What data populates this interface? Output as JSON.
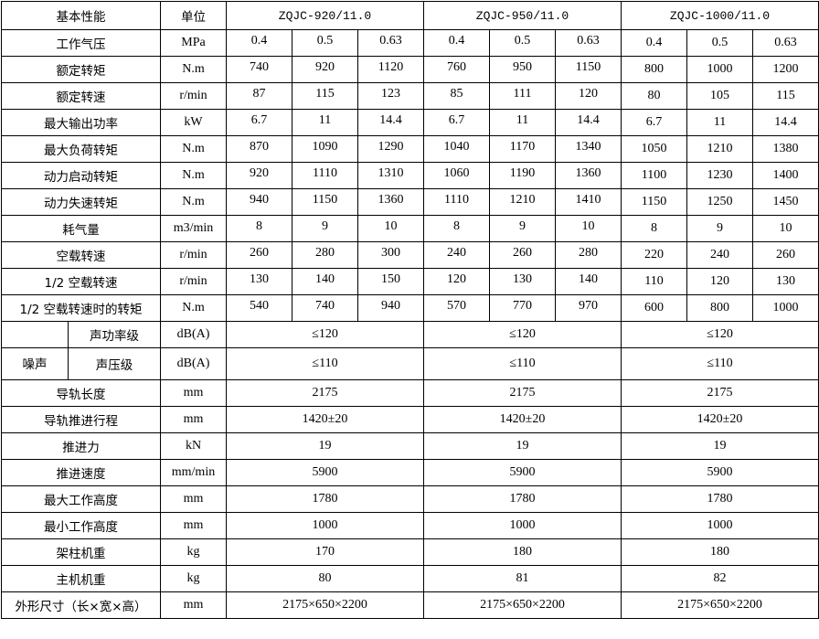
{
  "header": {
    "property": "基本性能",
    "unit": "单位",
    "models": [
      "ZQJC-920/11.0",
      "ZQJC-950/11.0",
      "ZQJC-1000/11.0"
    ]
  },
  "rows_multi": [
    {
      "label": "工作气压",
      "unit": "MPa",
      "values": [
        "0.4",
        "0.5",
        "0.63",
        "0.4",
        "0.5",
        "0.63",
        "0.4",
        "0.5",
        "0.63"
      ]
    },
    {
      "label": "额定转矩",
      "unit": "N.m",
      "values": [
        "740",
        "920",
        "1120",
        "760",
        "950",
        "1150",
        "800",
        "1000",
        "1200"
      ]
    },
    {
      "label": "额定转速",
      "unit": "r/min",
      "values": [
        "87",
        "115",
        "123",
        "85",
        "111",
        "120",
        "80",
        "105",
        "115"
      ]
    },
    {
      "label": "最大输出功率",
      "unit": "kW",
      "values": [
        "6.7",
        "11",
        "14.4",
        "6.7",
        "11",
        "14.4",
        "6.7",
        "11",
        "14.4"
      ]
    },
    {
      "label": "最大负荷转矩",
      "unit": "N.m",
      "values": [
        "870",
        "1090",
        "1290",
        "1040",
        "1170",
        "1340",
        "1050",
        "1210",
        "1380"
      ]
    },
    {
      "label": "动力启动转矩",
      "unit": "N.m",
      "values": [
        "920",
        "1110",
        "1310",
        "1060",
        "1190",
        "1360",
        "1100",
        "1230",
        "1400"
      ]
    },
    {
      "label": "动力失速转矩",
      "unit": "N.m",
      "values": [
        "940",
        "1150",
        "1360",
        "1110",
        "1210",
        "1410",
        "1150",
        "1250",
        "1450"
      ]
    },
    {
      "label": "耗气量",
      "unit": "m3/min",
      "values": [
        "8",
        "9",
        "10",
        "8",
        "9",
        "10",
        "8",
        "9",
        "10"
      ]
    },
    {
      "label": "空载转速",
      "unit": "r/min",
      "values": [
        "260",
        "280",
        "300",
        "240",
        "260",
        "280",
        "220",
        "240",
        "260"
      ]
    },
    {
      "label": "1/2 空载转速",
      "unit": "r/min",
      "values": [
        "130",
        "140",
        "150",
        "120",
        "130",
        "140",
        "110",
        "120",
        "130"
      ]
    },
    {
      "label": "1/2 空载转速时的转矩",
      "unit": "N.m",
      "values": [
        "540",
        "740",
        "940",
        "570",
        "770",
        "970",
        "600",
        "800",
        "1000"
      ]
    }
  ],
  "noise": {
    "label": "噪声",
    "power": {
      "label": "声功率级",
      "unit": "dB(A)",
      "values": [
        "≤120",
        "≤120",
        "≤120"
      ]
    },
    "pressure": {
      "label": "声压级",
      "unit": "dB(A)",
      "values": [
        "≤110",
        "≤110",
        "≤110"
      ]
    }
  },
  "rows_single": [
    {
      "label": "导轨长度",
      "unit": "mm",
      "values": [
        "2175",
        "2175",
        "2175"
      ]
    },
    {
      "label": "导轨推进行程",
      "unit": "mm",
      "values": [
        "1420±20",
        "1420±20",
        "1420±20"
      ]
    },
    {
      "label": "推进力",
      "unit": "kN",
      "values": [
        "19",
        "19",
        "19"
      ]
    },
    {
      "label": "推进速度",
      "unit": "mm/min",
      "values": [
        "5900",
        "5900",
        "5900"
      ]
    },
    {
      "label": "最大工作高度",
      "unit": "mm",
      "values": [
        "1780",
        "1780",
        "1780"
      ]
    },
    {
      "label": "最小工作高度",
      "unit": "mm",
      "values": [
        "1000",
        "1000",
        "1000"
      ]
    },
    {
      "label": "架柱机重",
      "unit": "kg",
      "values": [
        "170",
        "180",
        "180"
      ]
    },
    {
      "label": "主机机重",
      "unit": "kg",
      "values": [
        "80",
        "81",
        "82"
      ]
    },
    {
      "label": "外形尺寸（长×宽×高）",
      "unit": "mm",
      "values": [
        "2175×650×2200",
        "2175×650×2200",
        "2175×650×2200"
      ]
    }
  ]
}
